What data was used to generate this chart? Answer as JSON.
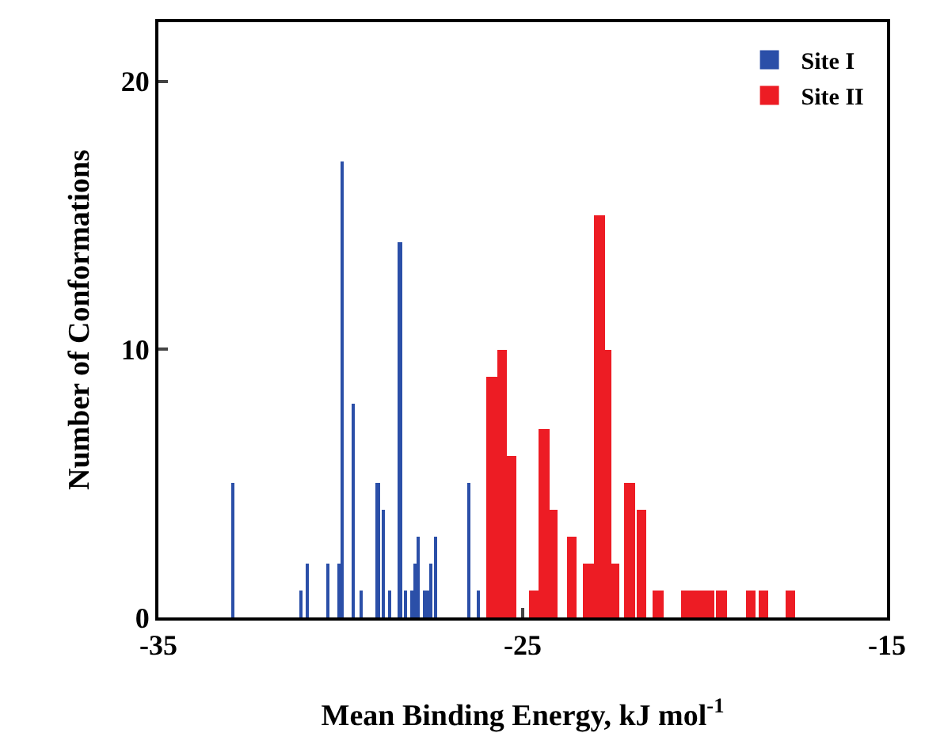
{
  "chart_data": {
    "type": "bar",
    "xlabel": "Mean Binding Energy, kJ mol$^{-1}$",
    "ylabel": "Number of Conformations",
    "xlim": [
      -35,
      -15
    ],
    "xticks": [
      -35,
      -25,
      -15
    ],
    "ylim": [
      0,
      22.2
    ],
    "yticks": [
      0,
      10,
      20
    ],
    "legend": "top right",
    "series": [
      {
        "name": "Site I",
        "color": "#2b4fa8",
        "x": [
          -32.94,
          -31.08,
          -30.92,
          -30.34,
          -30.04,
          -29.94,
          -29.66,
          -29.41,
          -28.97,
          -28.82,
          -28.66,
          -28.36,
          -28.22,
          -28.04,
          -27.95,
          -27.86,
          -27.69,
          -27.6,
          -27.52,
          -27.4,
          -26.47,
          -26.22
        ],
        "values": [
          5,
          1,
          2,
          2,
          2,
          17,
          8,
          1,
          5,
          4,
          1,
          14,
          1,
          1,
          2,
          3,
          1,
          1,
          2,
          3,
          5,
          1
        ]
      },
      {
        "name": "Site II",
        "color": "#ed1c24",
        "x": [
          -25.85,
          -25.56,
          -25.31,
          -24.67,
          -24.42,
          -24.2,
          -23.66,
          -23.19,
          -22.9,
          -22.72,
          -22.49,
          -22.07,
          -21.75,
          -21.28,
          -20.5,
          -20.2,
          -19.9,
          -19.54,
          -18.74,
          -18.4,
          -17.66
        ],
        "values": [
          9,
          10,
          6,
          1,
          7,
          4,
          3,
          2,
          15,
          10,
          2,
          5,
          4,
          1,
          1,
          1,
          1,
          1,
          1,
          1,
          1
        ]
      }
    ]
  }
}
